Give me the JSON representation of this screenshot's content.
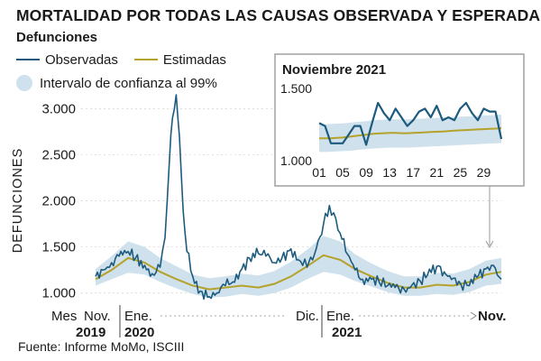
{
  "title": "MORTALIDAD POR TODAS LAS CAUSAS OBSERVADA Y ESPERADA",
  "subtitle": "Defunciones",
  "legend": {
    "observed": "Observadas",
    "estimated": "Estimadas",
    "interval": "Intervalo de confianza al 99%"
  },
  "colors": {
    "observed": "#1d5b7e",
    "estimated": "#b5a22a",
    "interval": "#cfe1ec",
    "axis": "#444444"
  },
  "source": "Fuente: Informe MoMo, ISCIII",
  "chart_data": [
    {
      "type": "line",
      "title": "",
      "ylabel": "DEFUNCIONES",
      "ylim": [
        850,
        3200
      ],
      "yticks": [
        1000,
        1500,
        2000,
        2500,
        3000
      ],
      "ytick_labels": [
        "1.000",
        "1.500",
        "2.000",
        "2.500",
        "3.000"
      ],
      "x_range_months": [
        "2019-11",
        "2021-11"
      ],
      "xlabels": [
        {
          "text": "Mes",
          "kind": "label"
        },
        {
          "text": "Nov.",
          "kind": "month"
        },
        {
          "text": "2019",
          "kind": "year"
        },
        {
          "text": "Ene.",
          "kind": "month"
        },
        {
          "text": "2020",
          "kind": "year"
        },
        {
          "text": "Dic.",
          "kind": "month"
        },
        {
          "text": "Ene.",
          "kind": "month"
        },
        {
          "text": "2021",
          "kind": "year"
        },
        {
          "text": "Nov.",
          "kind": "month-bold"
        }
      ],
      "series": [
        {
          "name": "Observadas",
          "points": [
            [
              "2019-11-01",
              1180
            ],
            [
              "2019-11-15",
              1250
            ],
            [
              "2019-12-01",
              1330
            ],
            [
              "2019-12-15",
              1400
            ],
            [
              "2020-01-01",
              1450
            ],
            [
              "2020-01-15",
              1380
            ],
            [
              "2020-02-01",
              1300
            ],
            [
              "2020-02-15",
              1210
            ],
            [
              "2020-03-01",
              1280
            ],
            [
              "2020-03-10",
              1600
            ],
            [
              "2020-03-18",
              2400
            ],
            [
              "2020-03-24",
              2900
            ],
            [
              "2020-03-31",
              3150
            ],
            [
              "2020-04-06",
              2700
            ],
            [
              "2020-04-13",
              1900
            ],
            [
              "2020-04-20",
              1450
            ],
            [
              "2020-05-01",
              1180
            ],
            [
              "2020-05-15",
              1020
            ],
            [
              "2020-06-01",
              960
            ],
            [
              "2020-06-15",
              1000
            ],
            [
              "2020-07-01",
              1080
            ],
            [
              "2020-07-15",
              1120
            ],
            [
              "2020-08-01",
              1260
            ],
            [
              "2020-08-15",
              1380
            ],
            [
              "2020-09-01",
              1430
            ],
            [
              "2020-09-15",
              1400
            ],
            [
              "2020-10-01",
              1330
            ],
            [
              "2020-10-15",
              1380
            ],
            [
              "2020-11-01",
              1480
            ],
            [
              "2020-11-15",
              1360
            ],
            [
              "2020-12-01",
              1280
            ],
            [
              "2020-12-15",
              1420
            ],
            [
              "2021-01-01",
              1750
            ],
            [
              "2021-01-12",
              1950
            ],
            [
              "2021-01-20",
              1870
            ],
            [
              "2021-02-01",
              1650
            ],
            [
              "2021-02-15",
              1420
            ],
            [
              "2021-03-01",
              1250
            ],
            [
              "2021-03-15",
              1150
            ],
            [
              "2021-04-01",
              1150
            ],
            [
              "2021-04-15",
              1120
            ],
            [
              "2021-05-01",
              1080
            ],
            [
              "2021-05-15",
              1060
            ],
            [
              "2021-06-01",
              1040
            ],
            [
              "2021-06-15",
              1080
            ],
            [
              "2021-07-01",
              1130
            ],
            [
              "2021-07-15",
              1200
            ],
            [
              "2021-08-01",
              1290
            ],
            [
              "2021-08-15",
              1230
            ],
            [
              "2021-09-01",
              1160
            ],
            [
              "2021-09-15",
              1100
            ],
            [
              "2021-10-01",
              1080
            ],
            [
              "2021-10-15",
              1170
            ],
            [
              "2021-11-01",
              1260
            ],
            [
              "2021-11-15",
              1300
            ],
            [
              "2021-11-30",
              1150
            ]
          ]
        },
        {
          "name": "Estimadas",
          "points": [
            [
              "2019-11-01",
              1150
            ],
            [
              "2019-12-01",
              1250
            ],
            [
              "2020-01-01",
              1380
            ],
            [
              "2020-02-01",
              1330
            ],
            [
              "2020-03-01",
              1230
            ],
            [
              "2020-04-01",
              1150
            ],
            [
              "2020-05-01",
              1080
            ],
            [
              "2020-06-01",
              1040
            ],
            [
              "2020-07-01",
              1060
            ],
            [
              "2020-08-01",
              1080
            ],
            [
              "2020-09-01",
              1060
            ],
            [
              "2020-10-01",
              1100
            ],
            [
              "2020-11-01",
              1180
            ],
            [
              "2020-12-01",
              1290
            ],
            [
              "2021-01-01",
              1410
            ],
            [
              "2021-02-01",
              1360
            ],
            [
              "2021-03-01",
              1260
            ],
            [
              "2021-04-01",
              1180
            ],
            [
              "2021-05-01",
              1110
            ],
            [
              "2021-06-01",
              1060
            ],
            [
              "2021-07-01",
              1060
            ],
            [
              "2021-08-01",
              1090
            ],
            [
              "2021-09-01",
              1080
            ],
            [
              "2021-10-01",
              1120
            ],
            [
              "2021-11-01",
              1200
            ],
            [
              "2021-11-30",
              1230
            ]
          ]
        },
        {
          "name": "Intervalo de confianza al 99%",
          "points": [
            [
              "2019-11-01",
              1080,
              1260
            ],
            [
              "2019-12-01",
              1150,
              1400
            ],
            [
              "2020-01-01",
              1220,
              1560
            ],
            [
              "2020-02-01",
              1200,
              1500
            ],
            [
              "2020-03-01",
              1120,
              1380
            ],
            [
              "2020-04-01",
              1050,
              1290
            ],
            [
              "2020-05-01",
              990,
              1200
            ],
            [
              "2020-06-01",
              950,
              1160
            ],
            [
              "2020-07-01",
              960,
              1180
            ],
            [
              "2020-08-01",
              990,
              1210
            ],
            [
              "2020-09-01",
              970,
              1190
            ],
            [
              "2020-10-01",
              1000,
              1240
            ],
            [
              "2020-11-01",
              1060,
              1340
            ],
            [
              "2020-12-01",
              1150,
              1470
            ],
            [
              "2021-01-01",
              1230,
              1620
            ],
            [
              "2021-02-01",
              1200,
              1560
            ],
            [
              "2021-03-01",
              1130,
              1420
            ],
            [
              "2021-04-01",
              1070,
              1320
            ],
            [
              "2021-05-01",
              1010,
              1240
            ],
            [
              "2021-06-01",
              970,
              1180
            ],
            [
              "2021-07-01",
              970,
              1180
            ],
            [
              "2021-08-01",
              990,
              1220
            ],
            [
              "2021-09-01",
              980,
              1210
            ],
            [
              "2021-10-01",
              1010,
              1260
            ],
            [
              "2021-11-01",
              1080,
              1350
            ],
            [
              "2021-11-30",
              1100,
              1380
            ]
          ]
        }
      ]
    },
    {
      "type": "line",
      "title": "Noviembre 2021",
      "ylim": [
        1000,
        1500
      ],
      "yticks": [
        1000,
        1500
      ],
      "ytick_labels": [
        "1.000",
        "1.500"
      ],
      "x": [
        1,
        2,
        3,
        4,
        5,
        6,
        7,
        8,
        9,
        10,
        11,
        12,
        13,
        14,
        15,
        16,
        17,
        18,
        19,
        20,
        21,
        22,
        23,
        24,
        25,
        26,
        27,
        28,
        29,
        30,
        31,
        32
      ],
      "xtick_labels": [
        "01",
        "05",
        "09",
        "13",
        "17",
        "21",
        "25",
        "29"
      ],
      "xtick_positions": [
        1,
        5,
        9,
        13,
        17,
        21,
        25,
        29
      ],
      "series": [
        {
          "name": "Observadas",
          "values": [
            1260,
            1240,
            1120,
            1120,
            1120,
            1180,
            1240,
            1240,
            1110,
            1260,
            1400,
            1330,
            1280,
            1360,
            1300,
            1240,
            1280,
            1340,
            1360,
            1300,
            1380,
            1280,
            1300,
            1280,
            1360,
            1400,
            1330,
            1280,
            1360,
            1340,
            1340,
            1150
          ]
        },
        {
          "name": "Estimadas",
          "values": [
            1155,
            1155,
            1155,
            1158,
            1160,
            1165,
            1170,
            1175,
            1180,
            1185,
            1188,
            1190,
            1192,
            1192,
            1190,
            1190,
            1192,
            1194,
            1196,
            1198,
            1200,
            1202,
            1205,
            1208,
            1210,
            1212,
            1214,
            1216,
            1218,
            1220,
            1222,
            1225
          ]
        },
        {
          "name": "Intervalo de confianza al 99%",
          "lower": [
            1060,
            1060,
            1062,
            1064,
            1066,
            1068,
            1072,
            1076,
            1080,
            1084,
            1086,
            1088,
            1090,
            1090,
            1090,
            1090,
            1092,
            1094,
            1096,
            1098,
            1100,
            1102,
            1104,
            1106,
            1108,
            1110,
            1112,
            1114,
            1116,
            1118,
            1120,
            1122
          ],
          "upper": [
            1250,
            1252,
            1254,
            1256,
            1258,
            1262,
            1266,
            1270,
            1274,
            1278,
            1282,
            1284,
            1286,
            1286,
            1286,
            1286,
            1288,
            1290,
            1292,
            1294,
            1296,
            1298,
            1300,
            1302,
            1304,
            1306,
            1308,
            1310,
            1312,
            1314,
            1316,
            1318
          ]
        }
      ]
    }
  ]
}
